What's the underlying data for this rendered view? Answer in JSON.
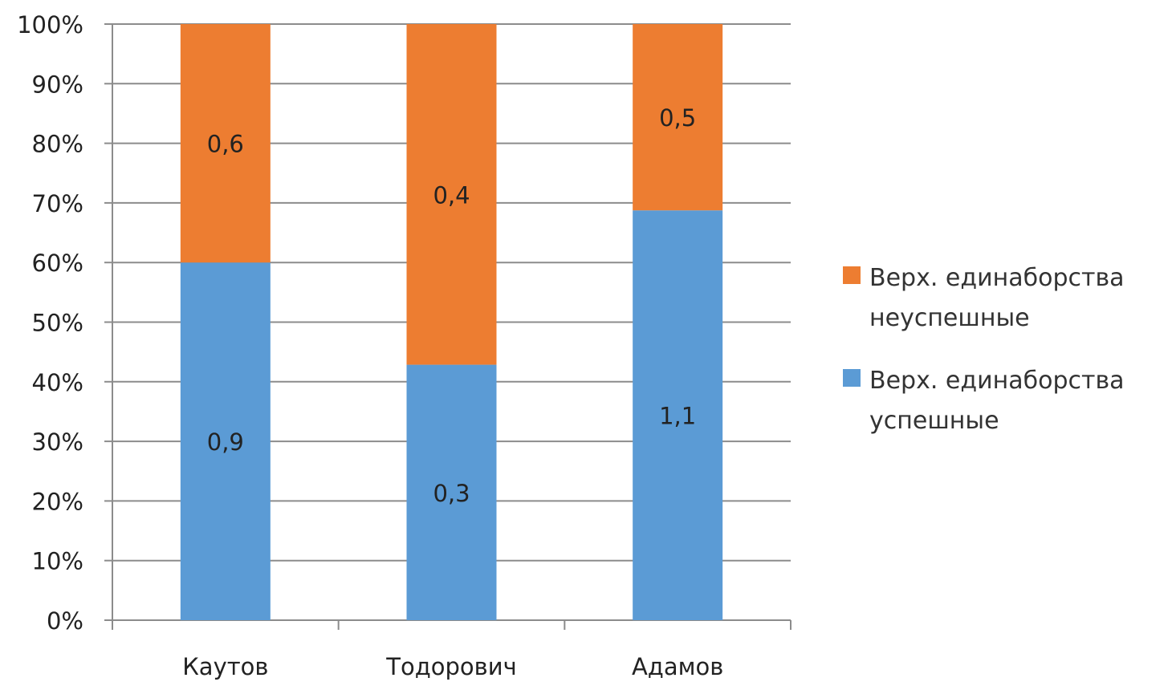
{
  "chart_data": {
    "type": "bar",
    "stacked": "percent",
    "title": "",
    "xlabel": "",
    "ylabel": "",
    "ylim": [
      0,
      100
    ],
    "y_ticks": [
      "0%",
      "10%",
      "20%",
      "30%",
      "40%",
      "50%",
      "60%",
      "70%",
      "80%",
      "90%",
      "100%"
    ],
    "grid": true,
    "legend_position": "right",
    "categories": [
      "Каутов",
      "Тодорович",
      "Адамов"
    ],
    "series": [
      {
        "name": "Верх. единаборства успешные",
        "values": [
          0.9,
          0.3,
          1.1
        ],
        "labels": [
          "0,9",
          "0,3",
          "1,1"
        ],
        "color": "#5B9BD5"
      },
      {
        "name": "Верх. единаборства неуспешные",
        "values": [
          0.6,
          0.4,
          0.5
        ],
        "labels": [
          "0,6",
          "0,4",
          "0,5"
        ],
        "color": "#ED7D31"
      }
    ],
    "legend": [
      {
        "line1": "Верх. единаборства",
        "line2": "неуспешные",
        "color": "#ED7D31"
      },
      {
        "line1": "Верх. единаборства",
        "line2": "успешные",
        "color": "#5B9BD5"
      }
    ],
    "gridline_color": "#8c8c8c",
    "axis_color": "#8c8c8c"
  }
}
